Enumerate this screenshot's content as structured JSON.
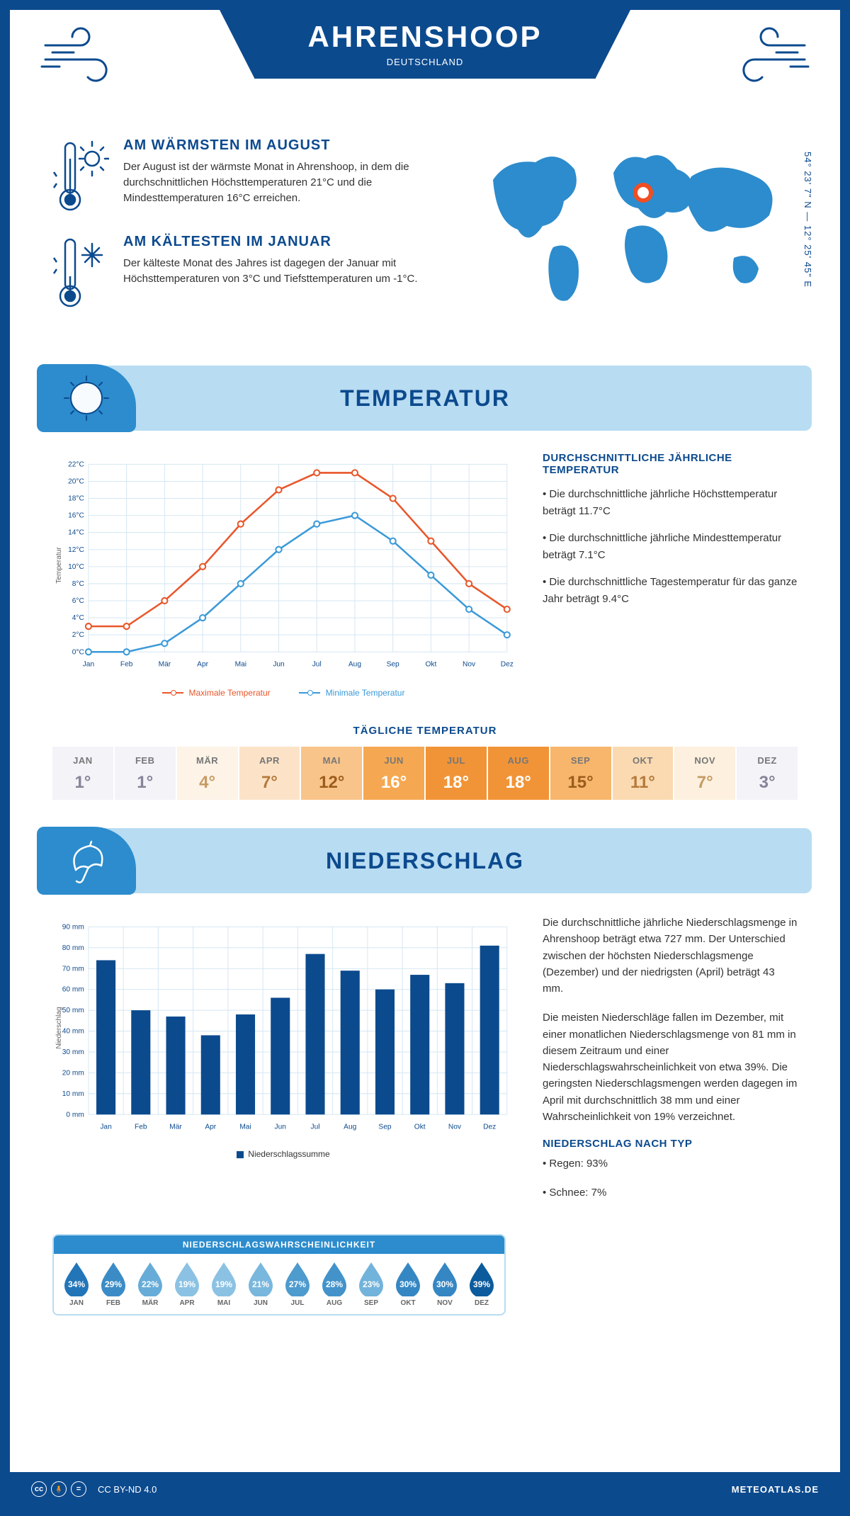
{
  "header": {
    "title": "AHRENSHOOP",
    "country": "DEUTSCHLAND",
    "coords": "54° 23' 7\" N — 12° 25' 45\" E"
  },
  "colors": {
    "primary": "#0c4a8e",
    "accent_blue": "#2c8ccd",
    "light_blue": "#b8dcf2",
    "max_line": "#e8572a",
    "min_line": "#3b9ad9",
    "grid": "#d6e7f3",
    "marker": "#f04e23"
  },
  "summary": {
    "warm": {
      "title": "AM WÄRMSTEN IM AUGUST",
      "text": "Der August ist der wärmste Monat in Ahrenshoop, in dem die durchschnittlichen Höchsttemperaturen 21°C und die Mindesttemperaturen 16°C erreichen."
    },
    "cold": {
      "title": "AM KÄLTESTEN IM JANUAR",
      "text": "Der kälteste Monat des Jahres ist dagegen der Januar mit Höchsttemperaturen von 3°C und Tiefsttemperaturen um -1°C."
    }
  },
  "months": [
    "Jan",
    "Feb",
    "Mär",
    "Apr",
    "Mai",
    "Jun",
    "Jul",
    "Aug",
    "Sep",
    "Okt",
    "Nov",
    "Dez"
  ],
  "months_uc": [
    "JAN",
    "FEB",
    "MÄR",
    "APR",
    "MAI",
    "JUN",
    "JUL",
    "AUG",
    "SEP",
    "OKT",
    "NOV",
    "DEZ"
  ],
  "temperature_section": {
    "title": "TEMPERATUR"
  },
  "temp_chart": {
    "type": "line",
    "y_min": 0,
    "y_max": 22,
    "y_step": 2,
    "y_suffix": "°C",
    "series": {
      "max": {
        "label": "Maximale Temperatur",
        "color": "#e8572a",
        "values": [
          3,
          3,
          6,
          10,
          15,
          19,
          21,
          21,
          18,
          13,
          8,
          5
        ]
      },
      "min": {
        "label": "Minimale Temperatur",
        "color": "#3b9ad9",
        "values": [
          0,
          0,
          1,
          4,
          8,
          12,
          15,
          16,
          13,
          9,
          5,
          2
        ]
      }
    },
    "y_axis_label": "Temperatur"
  },
  "temp_text": {
    "heading": "DURCHSCHNITTLICHE JÄHRLICHE TEMPERATUR",
    "p1": "• Die durchschnittliche jährliche Höchsttemperatur beträgt 11.7°C",
    "p2": "• Die durchschnittliche jährliche Mindesttemperatur beträgt 7.1°C",
    "p3": "• Die durchschnittliche Tagestemperatur für das ganze Jahr beträgt 9.4°C"
  },
  "daily_temp": {
    "title": "TÄGLICHE TEMPERATUR",
    "values": [
      1,
      1,
      4,
      7,
      12,
      16,
      18,
      18,
      15,
      11,
      7,
      3
    ],
    "bg_colors": [
      "#f4f3f8",
      "#f4f3f8",
      "#fdf3e7",
      "#fce3c8",
      "#f9c48a",
      "#f5a851",
      "#f19437",
      "#f19437",
      "#f7b66c",
      "#fbdab1",
      "#fdf0de",
      "#f4f3f8"
    ],
    "text_colors": [
      "#868497",
      "#868497",
      "#c79b63",
      "#b47a3b",
      "#9b5d1d",
      "#ffffff",
      "#ffffff",
      "#ffffff",
      "#9b5d1d",
      "#b47a3b",
      "#c79b63",
      "#868497"
    ]
  },
  "precip_section": {
    "title": "NIEDERSCHLAG"
  },
  "precip_chart": {
    "type": "bar",
    "y_min": 0,
    "y_max": 90,
    "y_step": 10,
    "y_suffix": " mm",
    "values": [
      74,
      50,
      47,
      38,
      48,
      56,
      77,
      69,
      60,
      67,
      63,
      81
    ],
    "bar_color": "#0c4a8e",
    "legend": "Niederschlagssumme",
    "y_axis_label": "Niederschlag"
  },
  "precip_text": {
    "p1": "Die durchschnittliche jährliche Niederschlagsmenge in Ahrenshoop beträgt etwa 727 mm. Der Unterschied zwischen der höchsten Niederschlagsmenge (Dezember) und der niedrigsten (April) beträgt 43 mm.",
    "p2": "Die meisten Niederschläge fallen im Dezember, mit einer monatlichen Niederschlagsmenge von 81 mm in diesem Zeitraum und einer Niederschlagswahrscheinlichkeit von etwa 39%. Die geringsten Niederschlagsmengen werden dagegen im April mit durchschnittlich 38 mm und einer Wahrscheinlichkeit von 19% verzeichnet.",
    "type_heading": "NIEDERSCHLAG NACH TYP",
    "type1": "• Regen: 93%",
    "type2": "• Schnee: 7%"
  },
  "probability": {
    "title": "NIEDERSCHLAGSWAHRSCHEINLICHKEIT",
    "values": [
      34,
      29,
      22,
      19,
      19,
      21,
      27,
      28,
      23,
      30,
      30,
      39
    ],
    "colors": [
      "#2276b8",
      "#3b8cc6",
      "#67acd8",
      "#8bc2e3",
      "#8bc2e3",
      "#79b7dd",
      "#4e9bce",
      "#4393ca",
      "#72b3db",
      "#3587c3",
      "#3587c3",
      "#0c5b9c"
    ]
  },
  "footer": {
    "license": "CC BY-ND 4.0",
    "site": "METEOATLAS.DE"
  }
}
